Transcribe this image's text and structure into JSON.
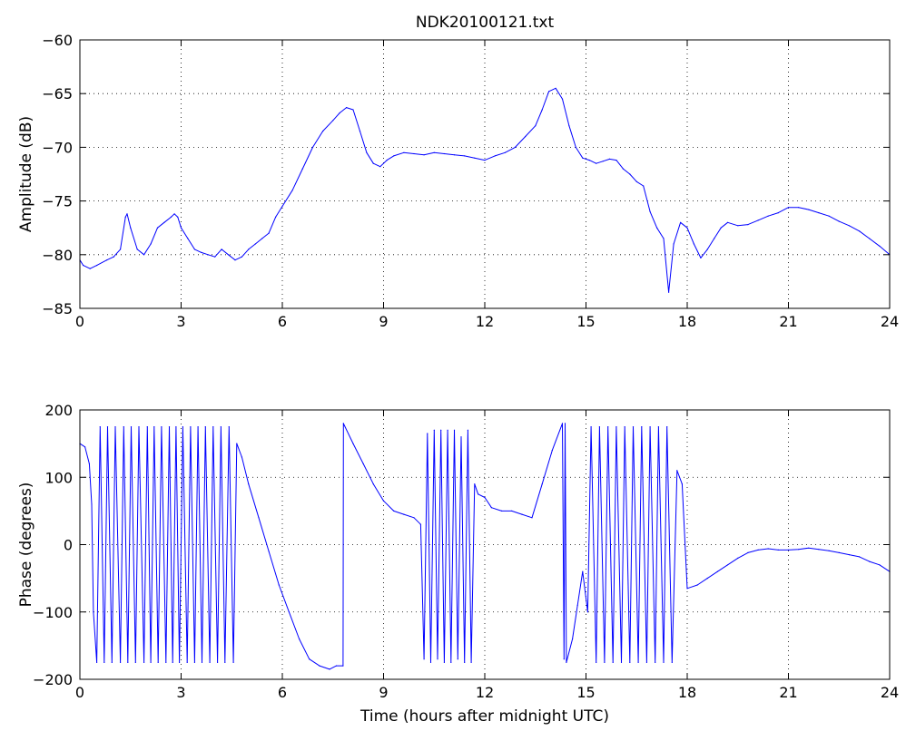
{
  "title": "NDK20100121.txt",
  "colors": {
    "trace": "#0000ff",
    "axes": "#000000",
    "background": "#ffffff"
  },
  "chart_data": [
    {
      "type": "line",
      "title": "NDK20100121.txt",
      "xlabel": "",
      "ylabel": "Amplitude (dB)",
      "xlim": [
        0,
        24
      ],
      "ylim": [
        -85,
        -60
      ],
      "grid": true,
      "xticks": [
        0,
        3,
        6,
        9,
        12,
        15,
        18,
        21,
        24
      ],
      "yticks": [
        -85,
        -80,
        -75,
        -70,
        -65,
        -60
      ],
      "series": [
        {
          "color": "#0000ff",
          "x": [
            0,
            0.1,
            0.3,
            0.5,
            0.8,
            1.0,
            1.2,
            1.35,
            1.4,
            1.5,
            1.7,
            1.9,
            2.1,
            2.3,
            2.5,
            2.7,
            2.8,
            2.9,
            3.0,
            3.2,
            3.4,
            3.6,
            3.8,
            4.0,
            4.2,
            4.4,
            4.6,
            4.8,
            5.0,
            5.2,
            5.4,
            5.6,
            5.8,
            6.0,
            6.3,
            6.6,
            6.9,
            7.2,
            7.5,
            7.7,
            7.9,
            8.1,
            8.3,
            8.5,
            8.7,
            8.9,
            9.1,
            9.3,
            9.6,
            9.9,
            10.2,
            10.5,
            10.8,
            11.1,
            11.4,
            11.7,
            12.0,
            12.3,
            12.6,
            12.9,
            13.2,
            13.5,
            13.7,
            13.9,
            14.1,
            14.3,
            14.5,
            14.7,
            14.9,
            15.1,
            15.3,
            15.5,
            15.7,
            15.9,
            16.1,
            16.3,
            16.5,
            16.7,
            16.9,
            17.1,
            17.3,
            17.45,
            17.6,
            17.8,
            18.0,
            18.2,
            18.4,
            18.6,
            18.8,
            19.0,
            19.2,
            19.5,
            19.8,
            20.1,
            20.4,
            20.7,
            21.0,
            21.3,
            21.6,
            21.9,
            22.2,
            22.5,
            22.8,
            23.1,
            23.4,
            23.7,
            24.0
          ],
          "y": [
            -80.5,
            -81,
            -81.3,
            -81,
            -80.5,
            -80.2,
            -79.5,
            -76.5,
            -76.2,
            -77.5,
            -79.5,
            -80,
            -79,
            -77.5,
            -77,
            -76.5,
            -76.2,
            -76.5,
            -77.5,
            -78.5,
            -79.5,
            -79.8,
            -80,
            -80.2,
            -79.5,
            -80,
            -80.5,
            -80.2,
            -79.5,
            -79,
            -78.5,
            -78,
            -76.5,
            -75.5,
            -74,
            -72,
            -70,
            -68.5,
            -67.5,
            -66.8,
            -66.3,
            -66.5,
            -68.5,
            -70.5,
            -71.5,
            -71.8,
            -71.2,
            -70.8,
            -70.5,
            -70.6,
            -70.7,
            -70.5,
            -70.6,
            -70.7,
            -70.8,
            -71,
            -71.2,
            -70.8,
            -70.5,
            -70,
            -69,
            -68,
            -66.5,
            -64.8,
            -64.5,
            -65.5,
            -68,
            -70,
            -71,
            -71.2,
            -71.5,
            -71.3,
            -71.1,
            -71.2,
            -72,
            -72.5,
            -73.2,
            -73.6,
            -76,
            -77.5,
            -78.5,
            -83.5,
            -79,
            -77,
            -77.5,
            -79,
            -80.3,
            -79.5,
            -78.5,
            -77.5,
            -77,
            -77.3,
            -77.2,
            -76.8,
            -76.4,
            -76.1,
            -75.6,
            -75.6,
            -75.8,
            -76.1,
            -76.4,
            -76.9,
            -77.3,
            -77.8,
            -78.5,
            -79.2,
            -80
          ]
        }
      ]
    },
    {
      "type": "line",
      "title": "",
      "xlabel": "Time (hours after midnight UTC)",
      "ylabel": "Phase (degrees)",
      "xlim": [
        0,
        24
      ],
      "ylim": [
        -200,
        200
      ],
      "grid": true,
      "xticks": [
        0,
        3,
        6,
        9,
        12,
        15,
        18,
        21,
        24
      ],
      "yticks": [
        -200,
        -100,
        0,
        100,
        200
      ],
      "series": [
        {
          "color": "#0000ff",
          "x": [
            0,
            0.15,
            0.28,
            0.35,
            0.4,
            0.5,
            0.6,
            0.72,
            0.82,
            0.95,
            1.05,
            1.2,
            1.3,
            1.42,
            1.52,
            1.65,
            1.75,
            1.9,
            2.0,
            2.1,
            2.2,
            2.32,
            2.42,
            2.55,
            2.65,
            2.75,
            2.85,
            2.95,
            3.05,
            3.18,
            3.28,
            3.4,
            3.5,
            3.62,
            3.72,
            3.85,
            3.95,
            4.08,
            4.18,
            4.3,
            4.42,
            4.55,
            4.65,
            4.8,
            5.0,
            5.3,
            5.6,
            5.9,
            6.2,
            6.5,
            6.8,
            7.1,
            7.4,
            7.6,
            7.8,
            7.81,
            8.1,
            8.4,
            8.7,
            9.0,
            9.3,
            9.6,
            9.9,
            10.1,
            10.2,
            10.3,
            10.4,
            10.5,
            10.6,
            10.7,
            10.8,
            10.9,
            11.0,
            11.1,
            11.2,
            11.3,
            11.4,
            11.5,
            11.6,
            11.7,
            11.8,
            12.0,
            12.2,
            12.5,
            12.8,
            13.1,
            13.4,
            13.7,
            14.0,
            14.3,
            14.35,
            14.38,
            14.42,
            14.6,
            14.75,
            14.9,
            15.05,
            15.15,
            15.3,
            15.4,
            15.55,
            15.65,
            15.8,
            15.9,
            16.05,
            16.15,
            16.3,
            16.4,
            16.55,
            16.65,
            16.8,
            16.9,
            17.05,
            17.15,
            17.3,
            17.4,
            17.55,
            17.7,
            17.85,
            18.0,
            18.3,
            18.6,
            18.9,
            19.2,
            19.5,
            19.8,
            20.1,
            20.4,
            20.7,
            21.0,
            21.3,
            21.6,
            21.9,
            22.2,
            22.5,
            22.8,
            23.1,
            23.4,
            23.7,
            24.0
          ],
          "y": [
            150,
            145,
            120,
            60,
            -100,
            -175,
            175,
            -175,
            175,
            -175,
            175,
            -175,
            175,
            -175,
            175,
            -175,
            175,
            -175,
            175,
            -175,
            175,
            -175,
            175,
            -175,
            175,
            -175,
            175,
            -175,
            175,
            -175,
            175,
            -175,
            175,
            -175,
            175,
            -175,
            175,
            -175,
            175,
            -175,
            175,
            -175,
            150,
            130,
            90,
            40,
            -10,
            -60,
            -100,
            -140,
            -170,
            -180,
            -185,
            -180,
            -180,
            180,
            150,
            120,
            90,
            65,
            50,
            45,
            40,
            30,
            -170,
            165,
            -175,
            170,
            -170,
            170,
            -175,
            170,
            -175,
            170,
            -170,
            160,
            -175,
            170,
            -175,
            90,
            75,
            70,
            55,
            50,
            50,
            45,
            40,
            90,
            140,
            180,
            -170,
            180,
            -175,
            -140,
            -90,
            -40,
            -100,
            175,
            -175,
            175,
            -175,
            175,
            -175,
            175,
            -175,
            175,
            -175,
            175,
            -175,
            175,
            -175,
            175,
            -175,
            175,
            -175,
            175,
            -175,
            110,
            90,
            -65,
            -60,
            -50,
            -40,
            -30,
            -20,
            -12,
            -8,
            -6,
            -8,
            -8,
            -7,
            -5,
            -7,
            -9,
            -12,
            -15,
            -18,
            -25,
            -30,
            -40
          ]
        }
      ]
    }
  ]
}
